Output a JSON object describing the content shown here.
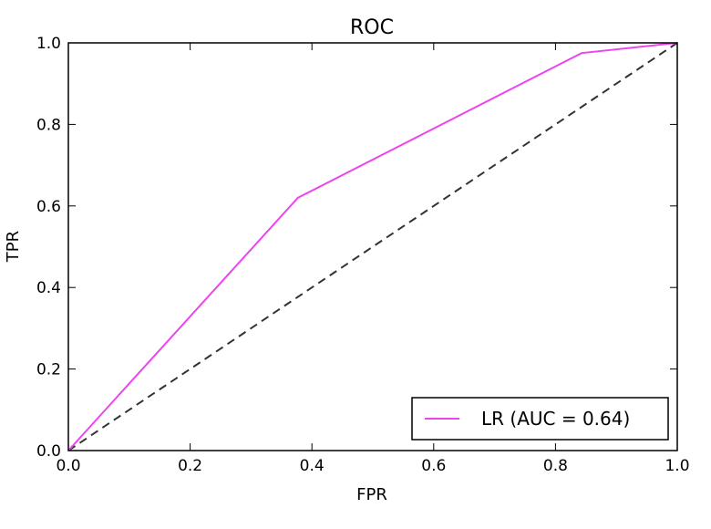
{
  "chart_data": {
    "type": "line",
    "title": "ROC",
    "xlabel": "FPR",
    "ylabel": "TPR",
    "xlim": [
      0.0,
      1.0
    ],
    "ylim": [
      0.0,
      1.0
    ],
    "xticks": [
      "0.0",
      "0.2",
      "0.4",
      "0.6",
      "0.8",
      "1.0"
    ],
    "yticks": [
      "0.0",
      "0.2",
      "0.4",
      "0.6",
      "0.8",
      "1.0"
    ],
    "grid": false,
    "legend_position": "bottom-right",
    "series": [
      {
        "name": "LR (AUC = 0.64)",
        "color": "#ee44ee",
        "x": [
          0.0,
          0.377,
          0.843,
          1.0
        ],
        "y": [
          0.0,
          0.62,
          0.975,
          1.0
        ]
      }
    ],
    "reference_line": {
      "style": "dashed",
      "color": "#333333",
      "x": [
        0.0,
        1.0
      ],
      "y": [
        0.0,
        1.0
      ]
    }
  }
}
